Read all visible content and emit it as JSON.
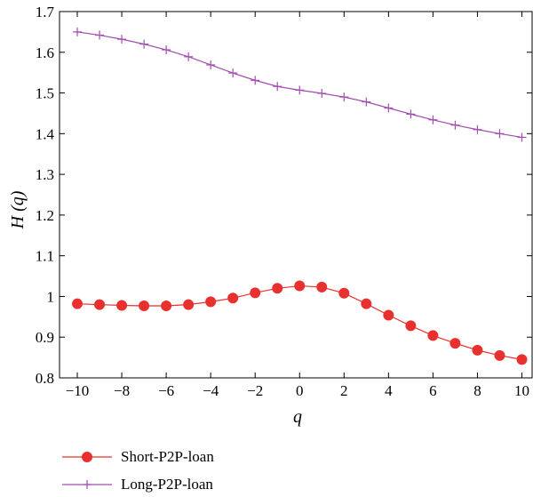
{
  "chart_data": {
    "type": "line",
    "xlabel": "q",
    "ylabel": "H (q)",
    "xlim": [
      -10.8,
      10.5
    ],
    "ylim": [
      0.8,
      1.7
    ],
    "xticks": [
      -10,
      -8,
      -6,
      -4,
      -2,
      0,
      2,
      4,
      6,
      8,
      10
    ],
    "yticks": [
      0.8,
      0.9,
      1,
      1.1,
      1.2,
      1.3,
      1.4,
      1.5,
      1.6,
      1.7
    ],
    "xtick_labels": [
      "−10",
      "−8",
      "−6",
      "−4",
      "−2",
      "0",
      "2",
      "4",
      "6",
      "8",
      "10"
    ],
    "ytick_labels": [
      "0.8",
      "0.9",
      "1",
      "1.1",
      "1.2",
      "1.3",
      "1.4",
      "1.5",
      "1.6",
      "1.7"
    ],
    "grid": false,
    "legend_position": "below",
    "x": [
      -10,
      -9,
      -8,
      -7,
      -6,
      -5,
      -4,
      -3,
      -2,
      -1,
      0,
      1,
      2,
      3,
      4,
      5,
      6,
      7,
      8,
      9,
      10
    ],
    "series": [
      {
        "name": "Short-P2P-loan",
        "color": "#e8312f",
        "marker": "circle",
        "values": [
          0.982,
          0.98,
          0.978,
          0.977,
          0.977,
          0.98,
          0.987,
          0.996,
          1.009,
          1.02,
          1.026,
          1.023,
          1.008,
          0.982,
          0.954,
          0.928,
          0.904,
          0.885,
          0.868,
          0.855,
          0.845
        ]
      },
      {
        "name": "Long-P2P-loan",
        "color": "#a24db0",
        "marker": "plus",
        "values": [
          1.65,
          1.642,
          1.632,
          1.62,
          1.606,
          1.589,
          1.569,
          1.549,
          1.531,
          1.516,
          1.507,
          1.499,
          1.49,
          1.478,
          1.463,
          1.448,
          1.434,
          1.421,
          1.41,
          1.4,
          1.391
        ]
      }
    ]
  }
}
